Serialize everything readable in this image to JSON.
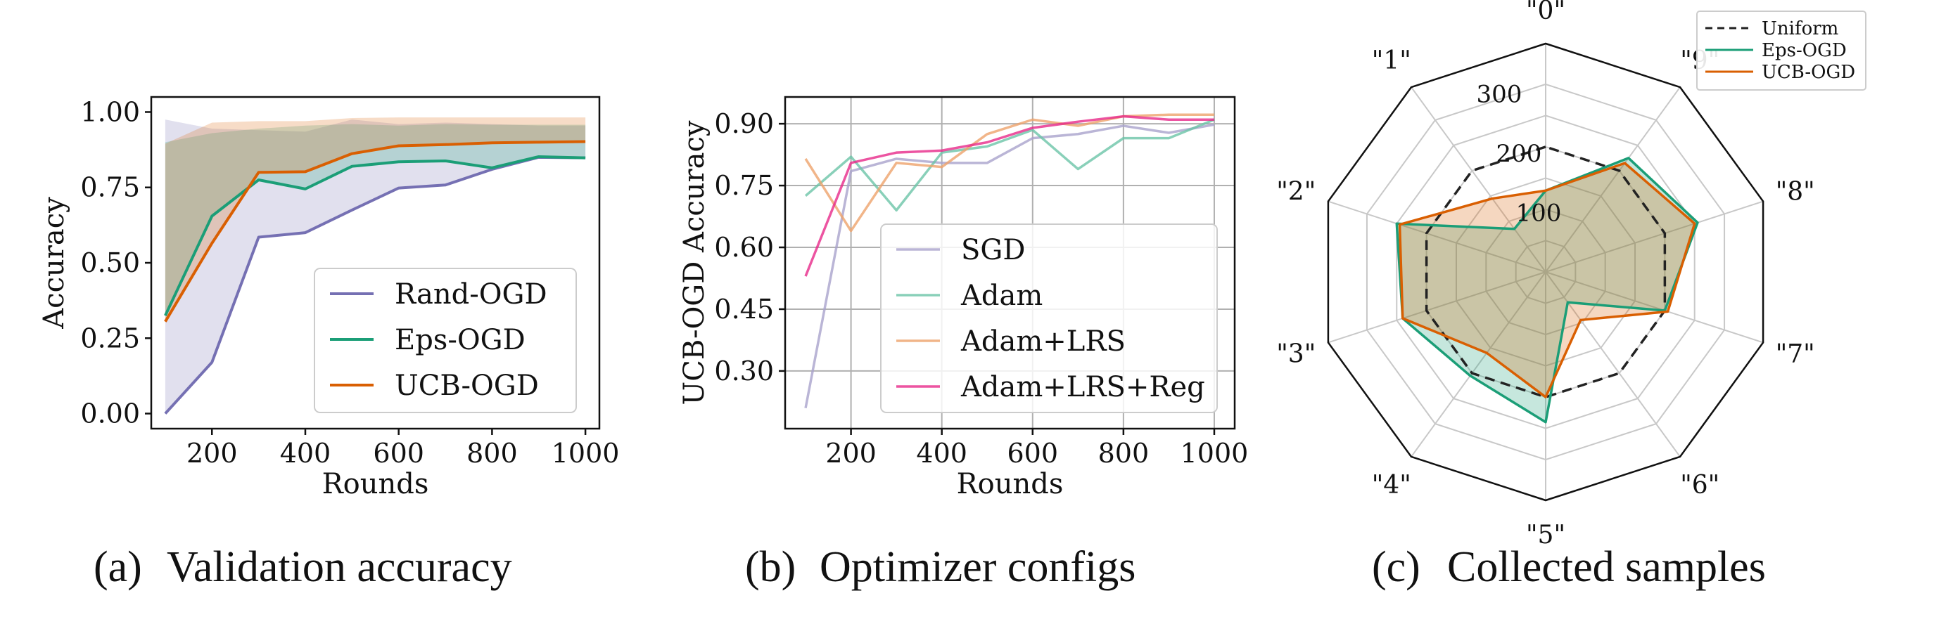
{
  "colors": {
    "rand": "#7570b3",
    "eps": "#1b9e77",
    "ucb": "#d95f02",
    "sgd": "#a9a3cc",
    "adam": "#6cc4a8",
    "adam_lrs": "#eea26b",
    "adam_lrs_reg": "#e7298a",
    "uniform": "#222222",
    "grid": "#b0b0b0"
  },
  "chart_data": [
    {
      "type": "line",
      "caption_label": "(a)",
      "caption_text": "Validation accuracy",
      "xlabel": "Rounds",
      "ylabel": "Accuracy",
      "xlim": [
        70,
        1030
      ],
      "ylim": [
        -0.05,
        1.05
      ],
      "xticks": [
        200,
        400,
        600,
        800,
        1000
      ],
      "yticks": [
        0.0,
        0.25,
        0.5,
        0.75,
        1.0
      ],
      "ytick_labels": [
        "0.00",
        "0.25",
        "0.50",
        "0.75",
        "1.00"
      ],
      "grid": false,
      "legend_position": "lower-right",
      "x": [
        100,
        200,
        300,
        400,
        500,
        600,
        700,
        800,
        900,
        1000
      ],
      "series": [
        {
          "name": "Rand-OGD",
          "color_key": "rand",
          "values": [
            0.0,
            0.17,
            0.585,
            0.6,
            0.675,
            0.748,
            0.758,
            0.81,
            0.85,
            0.848
          ],
          "band_low": [
            0.0,
            0.17,
            0.585,
            0.6,
            0.675,
            0.748,
            0.758,
            0.81,
            0.85,
            0.848
          ],
          "band_high": [
            0.975,
            0.945,
            0.94,
            0.935,
            0.975,
            0.96,
            0.965,
            0.96,
            0.955,
            0.955
          ]
        },
        {
          "name": "Eps-OGD",
          "color_key": "eps",
          "values": [
            0.325,
            0.655,
            0.775,
            0.745,
            0.82,
            0.835,
            0.838,
            0.815,
            0.852,
            0.848
          ],
          "band_low": [
            0.325,
            0.655,
            0.775,
            0.745,
            0.82,
            0.835,
            0.838,
            0.815,
            0.852,
            0.848
          ],
          "band_high": [
            0.9,
            0.93,
            0.945,
            0.955,
            0.96,
            0.955,
            0.96,
            0.958,
            0.958,
            0.958
          ]
        },
        {
          "name": "UCB-OGD",
          "color_key": "ucb",
          "values": [
            0.305,
            0.565,
            0.8,
            0.802,
            0.862,
            0.888,
            0.892,
            0.898,
            0.9,
            0.902
          ],
          "band_low": [
            0.305,
            0.565,
            0.8,
            0.802,
            0.862,
            0.888,
            0.892,
            0.898,
            0.9,
            0.902
          ],
          "band_high": [
            0.895,
            0.965,
            0.97,
            0.97,
            0.98,
            0.982,
            0.982,
            0.982,
            0.982,
            0.982
          ]
        }
      ]
    },
    {
      "type": "line",
      "caption_label": "(b)",
      "caption_text": "Optimizer configs",
      "xlabel": "Rounds",
      "ylabel": "UCB-OGD Accuracy",
      "xlim": [
        55,
        1045
      ],
      "ylim": [
        0.16,
        0.965
      ],
      "xticks": [
        200,
        400,
        600,
        800,
        1000
      ],
      "yticks": [
        0.3,
        0.45,
        0.6,
        0.75,
        0.9
      ],
      "ytick_labels": [
        "0.30",
        "0.45",
        "0.60",
        "0.75",
        "0.90"
      ],
      "grid": true,
      "legend_position": "lower-right",
      "x": [
        100,
        200,
        300,
        400,
        500,
        600,
        700,
        800,
        900,
        1000
      ],
      "series": [
        {
          "name": "SGD",
          "color_key": "sgd",
          "values": [
            0.21,
            0.785,
            0.815,
            0.805,
            0.805,
            0.865,
            0.875,
            0.895,
            0.878,
            0.898
          ]
        },
        {
          "name": "Adam",
          "color_key": "adam",
          "values": [
            0.725,
            0.82,
            0.69,
            0.83,
            0.845,
            0.885,
            0.79,
            0.865,
            0.865,
            0.91
          ]
        },
        {
          "name": "Adam+LRS",
          "color_key": "adam_lrs",
          "values": [
            0.815,
            0.64,
            0.805,
            0.795,
            0.875,
            0.91,
            0.895,
            0.918,
            0.922,
            0.922
          ]
        },
        {
          "name": "Adam+LRS+Reg",
          "color_key": "adam_lrs_reg",
          "values": [
            0.53,
            0.805,
            0.83,
            0.835,
            0.855,
            0.89,
            0.905,
            0.918,
            0.91,
            0.91
          ]
        }
      ]
    },
    {
      "type": "radar",
      "caption_label": "(c)",
      "caption_text": "Collected samples",
      "categories": [
        "\"0\"",
        "\"1\"",
        "\"2\"",
        "\"3\"",
        "\"4\"",
        "\"5\"",
        "\"6\"",
        "\"7\"",
        "\"8\"",
        "\"9\""
      ],
      "rlim": [
        0,
        365
      ],
      "rticks": [
        100,
        200,
        300
      ],
      "rtick_labels": [
        "100",
        "200",
        "300"
      ],
      "legend_position": "top-right",
      "series": [
        {
          "name": "Uniform",
          "color_key": "uniform",
          "style": "dashed",
          "values": [
            200,
            200,
            200,
            200,
            200,
            200,
            200,
            200,
            200,
            200
          ]
        },
        {
          "name": "Eps-OGD",
          "color_key": "eps",
          "style": "solid",
          "values": [
            130,
            85,
            250,
            240,
            205,
            240,
            60,
            200,
            255,
            225
          ]
        },
        {
          "name": "UCB-OGD",
          "color_key": "ucb",
          "style": "solid",
          "values": [
            130,
            145,
            245,
            240,
            160,
            200,
            95,
            205,
            250,
            215
          ]
        }
      ]
    }
  ]
}
